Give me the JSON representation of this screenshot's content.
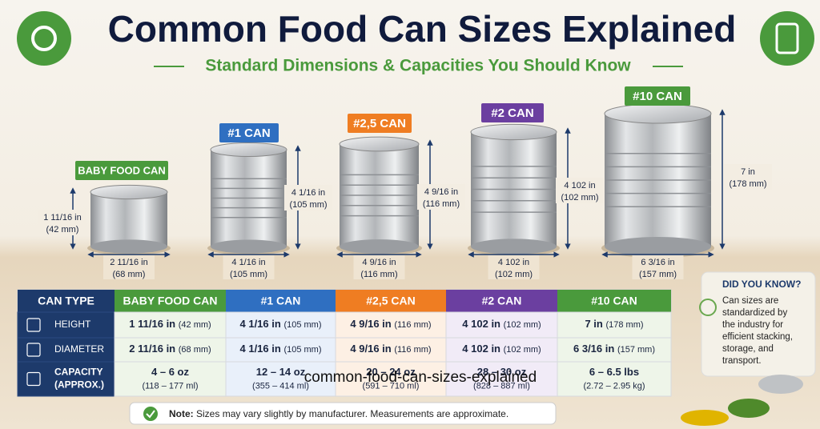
{
  "header": {
    "title": "Common Food Can Sizes Explained",
    "subtitle": "Standard Dimensions & Capacities You Should Know"
  },
  "cans": [
    {
      "label": "BABY FOOD CAN",
      "height": "1 11/16 in",
      "height_mm": "(42 mm)",
      "diameter": "2 11/16 in",
      "diameter_mm": "(68 mm)"
    },
    {
      "label": "#1 CAN",
      "height": "4 1/16 in",
      "height_mm": "(105 mm)",
      "diameter": "4 1/16 in",
      "diameter_mm": "(105 mm)"
    },
    {
      "label": "#2,5 CAN",
      "height": "4 9/16 in",
      "height_mm": "(116 mm)",
      "diameter": "4 9/16 in",
      "diameter_mm": "(116 mm)"
    },
    {
      "label": "#2 CAN",
      "height": "4 102 in",
      "height_mm": "(102 mm)",
      "diameter": "4 102 in",
      "diameter_mm": "(102 mm)"
    },
    {
      "label": "#10 CAN",
      "height": "7 in",
      "height_mm": "(178 mm)",
      "diameter": "6 3/16 in",
      "diameter_mm": "(157 mm)"
    }
  ],
  "table": {
    "header": [
      "CAN TYPE",
      "BABY FOOD CAN",
      "#1 CAN",
      "#2,5 CAN",
      "#2 CAN",
      "#10 CAN"
    ],
    "rows": [
      {
        "label": "HEIGHT",
        "cells": [
          [
            "1 11/16 in",
            "(42 mm)"
          ],
          [
            "4 1/16 in",
            "(105 mm)"
          ],
          [
            "4 9/16 in",
            "(116 mm)"
          ],
          [
            "4 102 in",
            "(102 mm)"
          ],
          [
            "7 in",
            "(178 mm)"
          ]
        ]
      },
      {
        "label": "DIAMETER",
        "cells": [
          [
            "2 11/16 in",
            "(68 mm)"
          ],
          [
            "4 1/16 in",
            "(105 mm)"
          ],
          [
            "4 9/16 in",
            "(116 mm)"
          ],
          [
            "4 102 in",
            "(102 mm)"
          ],
          [
            "6 3/16 in",
            "(157 mm)"
          ]
        ]
      },
      {
        "label": [
          "CAPACITY",
          "(APPROX.)"
        ],
        "cells": [
          [
            "4 – 6 oz",
            "(118 – 177 ml)"
          ],
          [
            "12 – 14 oz",
            "(355 – 414 ml)"
          ],
          [
            "20 – 24 oz",
            "(591 – 710 ml)"
          ],
          [
            "28 – 30 oz",
            "(828 – 887 ml)"
          ],
          [
            "6 – 6.5 lbs",
            "(2.72 – 2.95 kg)"
          ]
        ]
      }
    ]
  },
  "did_you_know": {
    "title": "DID YOU KNOW?",
    "lines": [
      "Can sizes are",
      "standardized by",
      "the industry for",
      "efficient stacking,",
      "storage, and",
      "transport."
    ]
  },
  "note": {
    "label": "Note:",
    "text": "Sizes may vary slightly by manufacturer. Measurements are approximate."
  },
  "watermark": "common-food-can-sizes-explained"
}
